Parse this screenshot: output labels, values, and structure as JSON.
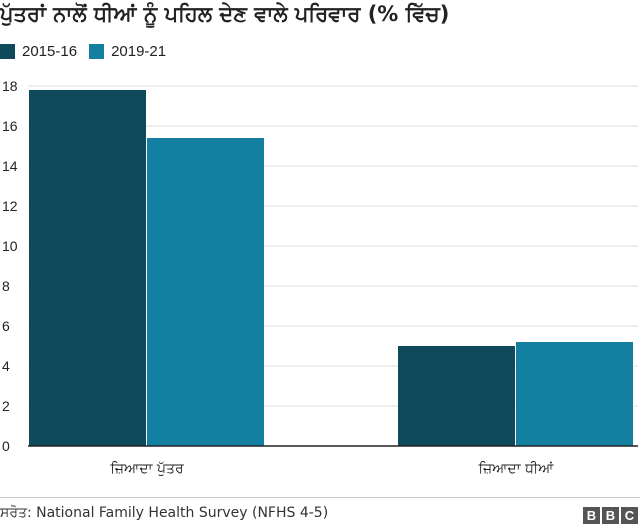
{
  "title": "ਪੁੱਤਰਾਂ ਨਾਲੋਂ ਧੀਆਂ ਨੂੰ ਪਹਿਲ ਦੇਣ ਵਾਲੇ ਪਰਿਵਾਰ (% ਵਿੱਚ)",
  "source": "ਸਰੋਤ: National Family Health Survey (NFHS 4-5)",
  "logo": [
    "B",
    "B",
    "C"
  ],
  "colors": {
    "series1": "#0e4a5c",
    "series2": "#1380a1",
    "grid": "#dddddd",
    "axis": "#222222"
  },
  "chart_data": {
    "type": "bar",
    "categories": [
      "ਜ਼ਿਆਦਾ ਪੁੱਤਰ",
      "ਜ਼ਿਆਦਾ ਧੀਆਂ"
    ],
    "series": [
      {
        "name": "2015-16",
        "values": [
          17.8,
          5.0
        ]
      },
      {
        "name": "2019-21",
        "values": [
          15.4,
          5.2
        ]
      }
    ],
    "ylim": [
      0,
      18
    ],
    "yticks": [
      "0",
      "2",
      "4",
      "6",
      "8",
      "10",
      "12",
      "14",
      "16",
      "18"
    ],
    "grid": true,
    "legend": "top-left"
  }
}
